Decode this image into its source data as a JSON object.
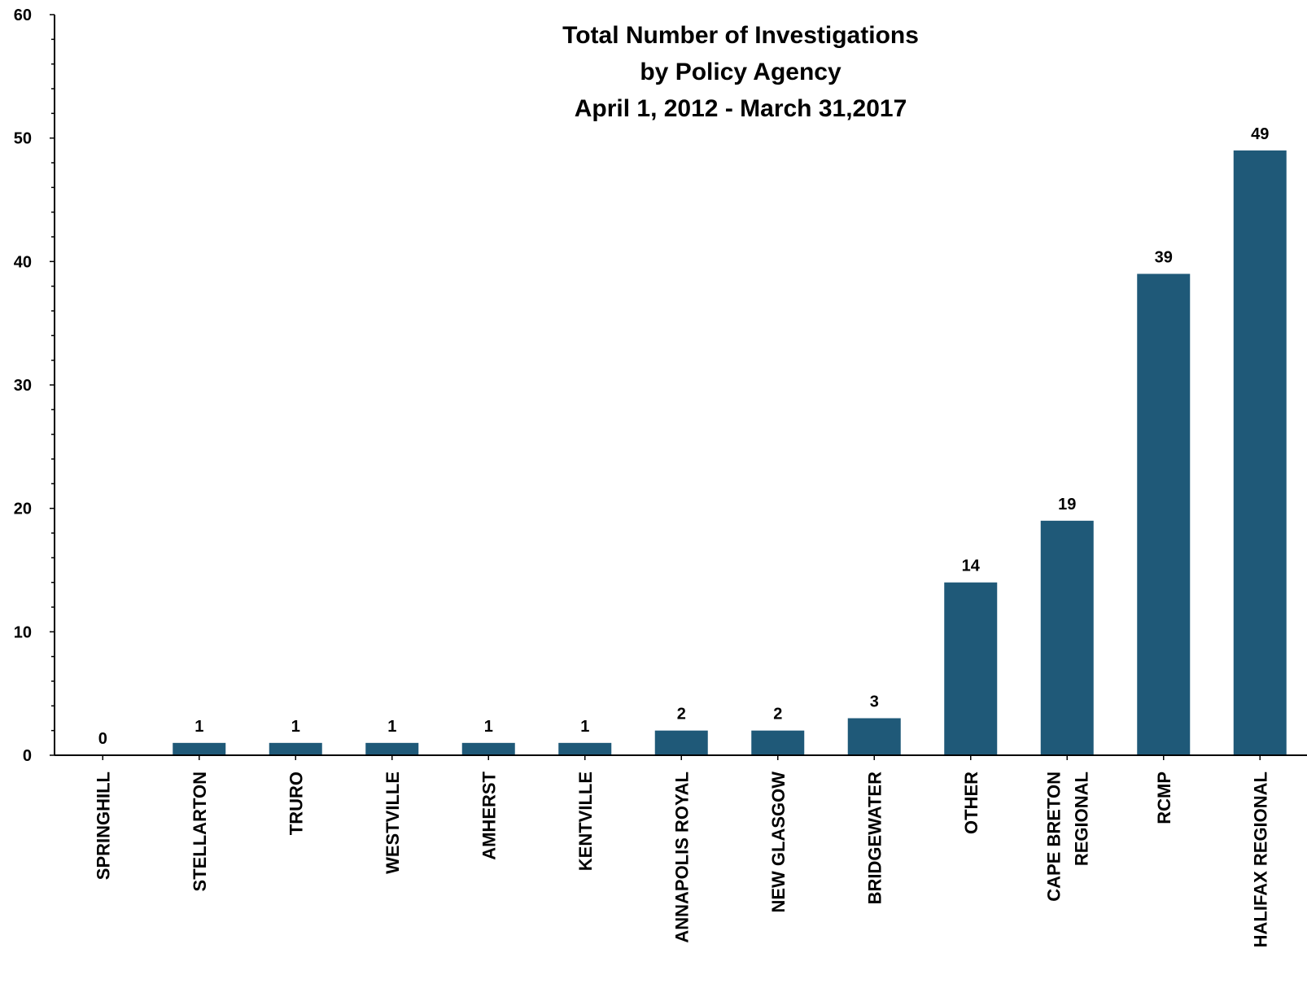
{
  "colors": {
    "bar": "#1f5978",
    "axis": "#000000",
    "background": "#ffffff"
  },
  "chart_data": {
    "type": "bar",
    "title": [
      "Total Number of Investigations",
      "by Policy Agency",
      "April 1, 2012 - March 31,2017"
    ],
    "xlabel": "",
    "ylabel": "",
    "categories": [
      [
        "SPRINGHILL"
      ],
      [
        "STELLARTON"
      ],
      [
        "TRURO"
      ],
      [
        "WESTVILLE"
      ],
      [
        "AMHERST"
      ],
      [
        "KENTVILLE"
      ],
      [
        "ANNAPOLIS ROYAL"
      ],
      [
        "NEW GLASGOW"
      ],
      [
        "BRIDGEWATER"
      ],
      [
        "OTHER"
      ],
      [
        "CAPE BRETON",
        "REGIONAL"
      ],
      [
        "RCMP"
      ],
      [
        "HALIFAX REGIONAL"
      ]
    ],
    "values": [
      0,
      1,
      1,
      1,
      1,
      1,
      2,
      2,
      3,
      14,
      19,
      39,
      49
    ],
    "data_labels": [
      "0",
      "1",
      "1",
      "1",
      "1",
      "1",
      "2",
      "2",
      "3",
      "14",
      "19",
      "39",
      "49"
    ],
    "ylim": [
      0,
      60
    ],
    "yticks": [
      0,
      10,
      20,
      30,
      40,
      50,
      60
    ],
    "minor_ticks_per_major": 5,
    "grid": false,
    "legend": "none"
  }
}
